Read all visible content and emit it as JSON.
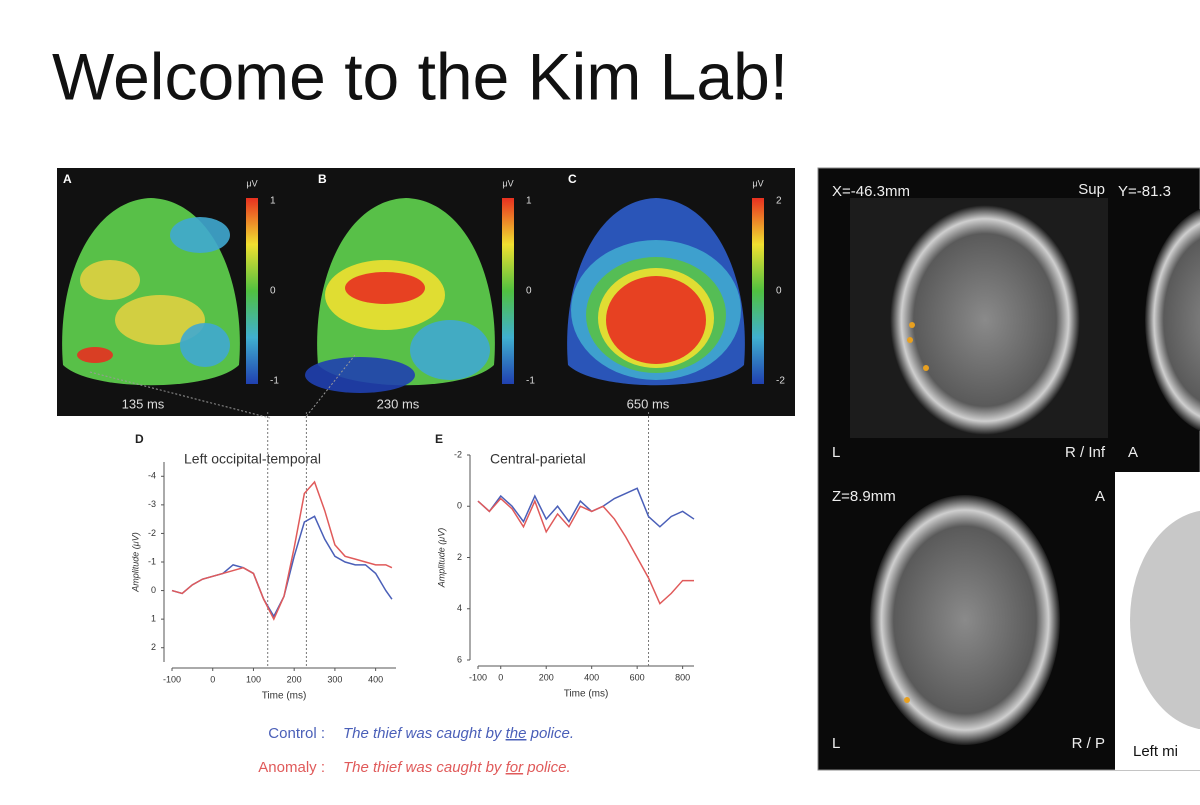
{
  "header": {
    "title": "Welcome to the Kim Lab!"
  },
  "topomaps": [
    {
      "letter": "A",
      "unit": "μV",
      "scale": [
        1,
        0,
        -1
      ],
      "time": "135 ms"
    },
    {
      "letter": "B",
      "unit": "μV",
      "scale": [
        1,
        0,
        -1
      ],
      "time": "230 ms"
    },
    {
      "letter": "C",
      "unit": "μV",
      "scale": [
        2,
        0,
        -2
      ],
      "time": "650 ms"
    }
  ],
  "chart_data": [
    {
      "type": "line",
      "letter": "D",
      "title": "Left occipital-temporal",
      "x_label": "Time (ms)",
      "y_label": "Amplitude (μV)",
      "x": [
        -100,
        -75,
        -50,
        -25,
        0,
        25,
        50,
        75,
        100,
        125,
        150,
        175,
        200,
        225,
        250,
        275,
        300,
        325,
        350,
        375,
        400,
        425,
        440
      ],
      "series": [
        {
          "name": "Control",
          "color": "#4a5fb8",
          "values": [
            0,
            0.1,
            -0.2,
            -0.4,
            -0.5,
            -0.6,
            -0.9,
            -0.8,
            -0.6,
            0.3,
            0.9,
            0.2,
            -1.2,
            -2.4,
            -2.6,
            -1.8,
            -1.2,
            -1.0,
            -0.9,
            -0.9,
            -0.6,
            0,
            0.3
          ]
        },
        {
          "name": "Anomaly",
          "color": "#e05a5a",
          "values": [
            0,
            0.1,
            -0.2,
            -0.4,
            -0.5,
            -0.6,
            -0.7,
            -0.8,
            -0.6,
            0.3,
            1.0,
            0.2,
            -1.5,
            -3.4,
            -3.8,
            -2.8,
            -1.6,
            -1.2,
            -1.1,
            -1.0,
            -0.9,
            -0.9,
            -0.8
          ]
        }
      ],
      "xlim": [
        -100,
        450
      ],
      "xticks": [
        -100,
        0,
        100,
        200,
        300,
        400
      ],
      "ylim": [
        -4.5,
        2.5
      ],
      "yticks": [
        -4,
        -3,
        -2,
        -1,
        0,
        1,
        2
      ],
      "y_inverted": true,
      "reference_lines": [
        135,
        230
      ]
    },
    {
      "type": "line",
      "letter": "E",
      "title": "Central-parietal",
      "x_label": "Time (ms)",
      "y_label": "Amplitude (μV)",
      "x": [
        -100,
        -50,
        0,
        50,
        100,
        150,
        200,
        250,
        300,
        350,
        400,
        450,
        500,
        550,
        600,
        650,
        700,
        750,
        800,
        850
      ],
      "series": [
        {
          "name": "Control",
          "color": "#4a5fb8",
          "values": [
            -0.2,
            0.2,
            -0.4,
            0,
            0.6,
            -0.4,
            0.5,
            0,
            0.6,
            -0.2,
            0.2,
            0,
            -0.3,
            -0.5,
            -0.7,
            0.4,
            0.8,
            0.4,
            0.2,
            0.5
          ]
        },
        {
          "name": "Anomaly",
          "color": "#e05a5a",
          "values": [
            -0.2,
            0.2,
            -0.3,
            0.1,
            0.8,
            -0.2,
            1.0,
            0.3,
            0.8,
            0,
            0.2,
            0,
            0.5,
            1.2,
            2.0,
            2.8,
            3.8,
            3.4,
            2.9,
            2.9
          ]
        }
      ],
      "xlim": [
        -100,
        850
      ],
      "xticks": [
        -100,
        0,
        200,
        400,
        600,
        800
      ],
      "ylim": [
        -2,
        6
      ],
      "yticks": [
        -2,
        0,
        2,
        4,
        6
      ],
      "y_inverted": true,
      "reference_lines": [
        650
      ]
    }
  ],
  "sentences": [
    {
      "label": "Control :",
      "color": "#4a5fb8",
      "parts": [
        "The thief was caught by ",
        "the",
        " police."
      ]
    },
    {
      "label": "Anomaly :",
      "color": "#e05a5a",
      "parts": [
        "The thief was caught by ",
        "for",
        " police."
      ]
    }
  ],
  "mri": {
    "x_slice": "X=-46.3mm",
    "sup": "Sup",
    "y_slice": "Y=-81.3",
    "left1": "L",
    "right_inf": "R / Inf",
    "anterior1": "A",
    "z_slice": "Z=8.9mm",
    "anterior2": "A",
    "left2": "L",
    "right_post": "R / P",
    "caption": "Left mi"
  }
}
